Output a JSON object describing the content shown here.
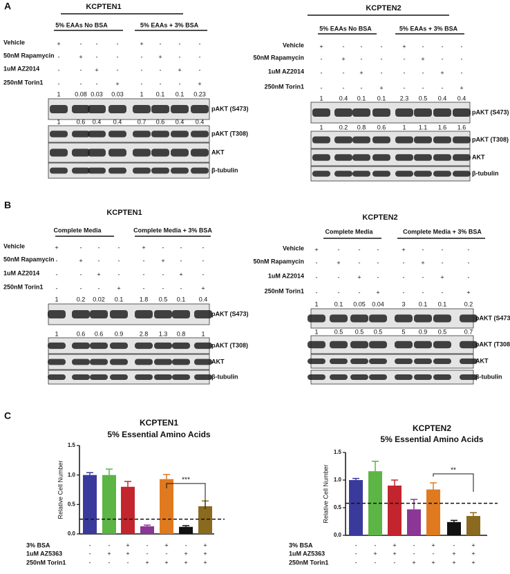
{
  "panels": [
    {
      "label": "A",
      "blots": [
        {
          "title": "KCPTEN1",
          "groups": [
            "5% EAAs No BSA",
            "5% EAAs + 3% BSA"
          ],
          "treatments": [
            {
              "label": "Vehicle",
              "signs": [
                "+",
                "-",
                "-",
                "-",
                "+",
                "-",
                "-",
                "-"
              ]
            },
            {
              "label": "50nM Rapamycin",
              "signs": [
                "-",
                "+",
                "-",
                "-",
                "-",
                "+",
                "-",
                "-"
              ]
            },
            {
              "label": "1uM AZ2014",
              "signs": [
                "-",
                "-",
                "+",
                "-",
                "-",
                "-",
                "+",
                "-"
              ]
            },
            {
              "label": "250nM Torin1",
              "signs": [
                "-",
                "-",
                "-",
                "+",
                "-",
                "-",
                "-",
                "+"
              ]
            }
          ],
          "rows": [
            {
              "label": "pAKT (S473)",
              "quant": [
                1,
                0.08,
                0.03,
                0.03,
                1,
                0.1,
                0.1,
                0.23
              ]
            },
            {
              "label": "pAKT (T308)",
              "quant": [
                1,
                0.6,
                0.4,
                0.4,
                0.7,
                0.6,
                0.4,
                0.4
              ]
            },
            {
              "label": "AKT"
            },
            {
              "label": "β-tubulin"
            }
          ]
        },
        {
          "title": "KCPTEN2",
          "groups": [
            "5% EAAs No BSA",
            "5% EAAs + 3% BSA"
          ],
          "treatments": [
            {
              "label": "Vehicle",
              "signs": [
                "+",
                "-",
                "-",
                "-",
                "+",
                "-",
                "-",
                "-"
              ]
            },
            {
              "label": "50nM Rapamycin",
              "signs": [
                "-",
                "+",
                "-",
                "-",
                "-",
                "+",
                "-",
                "-"
              ]
            },
            {
              "label": "1uM AZ2014",
              "signs": [
                "-",
                "-",
                "+",
                "-",
                "-",
                "-",
                "+",
                "-"
              ]
            },
            {
              "label": "250nM Torin1",
              "signs": [
                "-",
                "-",
                "-",
                "+",
                "-",
                "-",
                "-",
                "+"
              ]
            }
          ],
          "rows": [
            {
              "label": "pAKT (S473)",
              "quant": [
                1,
                0.4,
                0.1,
                0.1,
                2.3,
                0.5,
                0.4,
                0.4
              ]
            },
            {
              "label": "pAKT (T308)",
              "quant": [
                1,
                0.2,
                0.8,
                0.6,
                1,
                1.1,
                1.6,
                1.6
              ]
            },
            {
              "label": "AKT"
            },
            {
              "label": "β-tubulin"
            }
          ]
        }
      ]
    },
    {
      "label": "B",
      "blots": [
        {
          "title": "KCPTEN1",
          "groups": [
            "Complete Media",
            "Complete Media + 3% BSA"
          ],
          "treatments": [
            {
              "label": "Vehicle",
              "signs": [
                "+",
                "-",
                "-",
                "-",
                "+",
                "-",
                "-",
                "-"
              ]
            },
            {
              "label": "50nM Rapamycin",
              "signs": [
                "-",
                "+",
                "-",
                "-",
                "-",
                "+",
                "-",
                "-"
              ]
            },
            {
              "label": "1uM AZ2014",
              "signs": [
                "-",
                "-",
                "+",
                "-",
                "-",
                "-",
                "+",
                "-"
              ]
            },
            {
              "label": "250nM Torin1",
              "signs": [
                "-",
                "-",
                "-",
                "+",
                "-",
                "-",
                "-",
                "+"
              ]
            }
          ],
          "rows": [
            {
              "label": "pAKT (S473)",
              "quant": [
                1,
                0.2,
                0.02,
                0.1,
                1.8,
                0.5,
                0.1,
                0.4
              ]
            },
            {
              "label": "pAKT (T308)",
              "quant": [
                1,
                0.6,
                0.6,
                0.9,
                2.8,
                1.3,
                0.8,
                1
              ]
            },
            {
              "label": "AKT"
            },
            {
              "label": "β-tubulin"
            }
          ]
        },
        {
          "title": "KCPTEN2",
          "groups": [
            "Complete Media",
            "Complete Media + 3% BSA"
          ],
          "treatments": [
            {
              "label": "Vehicle",
              "signs": [
                "+",
                "-",
                "-",
                "-",
                "+",
                "-",
                "-",
                "-"
              ]
            },
            {
              "label": "50nM Rapamycin",
              "signs": [
                "-",
                "+",
                "-",
                "-",
                "-",
                "+",
                "-",
                "-"
              ]
            },
            {
              "label": "1uM AZ2014",
              "signs": [
                "-",
                "-",
                "+",
                "-",
                "-",
                "-",
                "+",
                "-"
              ]
            },
            {
              "label": "250nM Torin1",
              "signs": [
                "-",
                "-",
                "-",
                "+",
                "-",
                "-",
                "-",
                "+"
              ]
            }
          ],
          "rows": [
            {
              "label": "pAKT (S473)",
              "quant": [
                1,
                0.1,
                0.05,
                0.04,
                3,
                0.1,
                0.1,
                0.2
              ]
            },
            {
              "label": "pAKT (T308)",
              "quant": [
                1,
                0.5,
                0.5,
                0.5,
                5,
                0.9,
                0.5,
                0.7
              ]
            },
            {
              "label": "AKT"
            },
            {
              "label": "β-tubulin"
            }
          ]
        }
      ]
    },
    {
      "label": "C"
    }
  ],
  "chart_data": [
    {
      "type": "bar",
      "title": "KCPTEN1",
      "subtitle": "5% Essential Amino Acids",
      "y_label": "Relative Cell Number",
      "values": [
        1.0,
        1.0,
        0.8,
        0.13,
        0.93,
        0.12,
        0.47
      ],
      "errors": [
        0.04,
        0.1,
        0.09,
        0.02,
        0.08,
        0.02,
        0.09
      ],
      "colors": [
        "#3a3a9c",
        "#5cb545",
        "#c2252d",
        "#8a3796",
        "#e07a20",
        "#111111",
        "#8a6a1e"
      ],
      "ylim": [
        0,
        1.5
      ],
      "yticks": [
        {
          "value": 0,
          "label": "0.0"
        },
        {
          "value": 0.5,
          "label": "0.5"
        },
        {
          "value": 1,
          "label": "1.0"
        },
        {
          "value": 1.5,
          "label": "1.5"
        }
      ],
      "reference_line": 0.25,
      "significance": "***",
      "conditions": [
        {
          "label": "3% BSA",
          "signs": [
            "-",
            "-",
            "+",
            "-",
            "+",
            "-",
            "+"
          ]
        },
        {
          "label": "1uM AZ5363",
          "signs": [
            "-",
            "+",
            "+",
            "-",
            "-",
            "+",
            "+"
          ]
        },
        {
          "label": "250nM Torin1",
          "signs": [
            "-",
            "-",
            "-",
            "+",
            "+",
            "+",
            "+"
          ]
        }
      ]
    },
    {
      "type": "bar",
      "title": "KCPTEN2",
      "subtitle": "5% Essential Amino Acids",
      "y_label": "Relative Cell Number",
      "values": [
        1.0,
        1.16,
        0.9,
        0.47,
        0.83,
        0.24,
        0.35
      ],
      "errors": [
        0.03,
        0.18,
        0.1,
        0.18,
        0.12,
        0.03,
        0.06
      ],
      "colors": [
        "#3a3a9c",
        "#5cb545",
        "#c2252d",
        "#8a3796",
        "#e07a20",
        "#111111",
        "#8a6a1e"
      ],
      "ylim": [
        0,
        1.5
      ],
      "yticks": [
        {
          "value": 0,
          "label": "0.0"
        },
        {
          "value": 0.5,
          "label": "0.5"
        },
        {
          "value": 1,
          "label": "1.0"
        },
        {
          "value": 1.5,
          "label": "1.5"
        }
      ],
      "reference_line": 0.58,
      "significance": "**",
      "conditions": [
        {
          "label": "3% BSA",
          "signs": [
            "-",
            "-",
            "+",
            "-",
            "+",
            "-",
            "+"
          ]
        },
        {
          "label": "1uM AZ5363",
          "signs": [
            "-",
            "+",
            "+",
            "-",
            "-",
            "+",
            "+"
          ]
        },
        {
          "label": "250nM Torin1",
          "signs": [
            "-",
            "-",
            "-",
            "+",
            "+",
            "+",
            "+"
          ]
        }
      ]
    }
  ]
}
